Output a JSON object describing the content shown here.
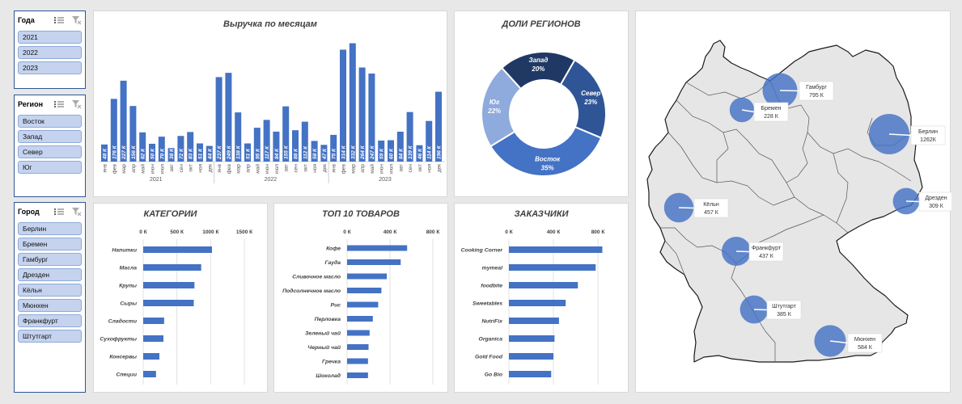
{
  "slicers": {
    "years": {
      "title": "Года",
      "items": [
        "2021",
        "2022",
        "2023"
      ]
    },
    "region": {
      "title": "Регион",
      "items": [
        "Восток",
        "Запад",
        "Север",
        "Юг"
      ]
    },
    "city": {
      "title": "Город",
      "items": [
        "Берлин",
        "Бремен",
        "Гамбург",
        "Дрезден",
        "Кёльн",
        "Мюнхен",
        "Франкфурт",
        "Штутгарт"
      ]
    }
  },
  "colors": {
    "bar": "#4472c4",
    "donut": [
      "#2f5597",
      "#4472c4",
      "#8faadc",
      "#203864"
    ],
    "map_fill": "#e6e6e6",
    "map_stroke": "#1a1a1a"
  },
  "chart_data": [
    {
      "type": "bar",
      "title": "Выручка по месяцам",
      "years": [
        "2021",
        "2022",
        "2023"
      ],
      "categories": [
        "янв",
        "фев",
        "мар",
        "апр",
        "май",
        "июн",
        "июл",
        "авг",
        "сен",
        "окт",
        "ноя",
        "дек"
      ],
      "values": [
        48,
        176,
        227,
        156,
        82,
        50,
        70,
        38,
        72,
        83,
        51,
        44,
        237,
        249,
        138,
        51,
        95,
        117,
        84,
        155,
        88,
        112,
        58,
        47,
        75,
        314,
        332,
        264,
        247,
        59,
        60,
        84,
        139,
        46,
        114,
        196
      ],
      "labels": [
        "48 К",
        "176 К",
        "227 К",
        "156 К",
        "82 К",
        "50 К",
        "70 К",
        "38 К",
        "72 К",
        "83 К",
        "51 К",
        "44 К",
        "237 К",
        "249 К",
        "138 К",
        "51 К",
        "95 К",
        "117 К",
        "84 К",
        "155 К",
        "88 К",
        "112 К",
        "58 К",
        "47 К",
        "75 К",
        "314 К",
        "332 К",
        "264 К",
        "247 К",
        "59 К",
        "60 К",
        "84 К",
        "139 К",
        "46 К",
        "114 К",
        "196 К"
      ]
    },
    {
      "type": "pie",
      "title": "ДОЛИ РЕГИОНОВ",
      "categories": [
        "Север",
        "Восток",
        "Юг",
        "Запад"
      ],
      "values": [
        23,
        35,
        22,
        20
      ],
      "labels": [
        "23%",
        "35%",
        "22%",
        "20%"
      ]
    },
    {
      "type": "bar",
      "title": "КАТЕГОРИИ",
      "categories": [
        "Напитки",
        "Масла",
        "Крупы",
        "Сыры",
        "Сладости",
        "Сухофрукты",
        "Консервы",
        "Специи"
      ],
      "values": [
        1020,
        860,
        760,
        750,
        310,
        300,
        240,
        190
      ],
      "xticks": [
        0,
        500,
        1000,
        1500
      ],
      "xtick_labels": [
        "0 К",
        "500 К",
        "1000 К",
        "1500 К"
      ],
      "xlim": [
        0,
        1500
      ]
    },
    {
      "type": "bar",
      "title": "ТОП 10 ТОВАРОВ",
      "categories": [
        "Кофе",
        "Гауда",
        "Сливочное масло",
        "Подсолнечное масло",
        "Рис",
        "Перловка",
        "Зеленый чай",
        "Черный чай",
        "Гречка",
        "Шоколад"
      ],
      "values": [
        560,
        500,
        370,
        320,
        290,
        240,
        210,
        200,
        195,
        195
      ],
      "xticks": [
        0,
        400,
        800
      ],
      "xtick_labels": [
        "0 К",
        "400 К",
        "800 К"
      ],
      "xlim": [
        0,
        800
      ]
    },
    {
      "type": "bar",
      "title": "ЗАКАЗЧИКИ",
      "categories": [
        "Cooking Corner",
        "mymeal",
        "foodbite",
        "Sweetables",
        "NutriFix",
        "Organica",
        "Gold Food",
        "Go Bio"
      ],
      "values": [
        840,
        780,
        620,
        510,
        450,
        410,
        400,
        380
      ],
      "xticks": [
        0,
        400,
        800
      ],
      "xtick_labels": [
        "0 К",
        "400 К",
        "800 К"
      ],
      "xlim": [
        0,
        800
      ]
    }
  ],
  "map": {
    "cities": [
      {
        "name": "Гамбург",
        "value": "795 К",
        "amount": 795
      },
      {
        "name": "Бремен",
        "value": "228 К",
        "amount": 228
      },
      {
        "name": "Берлин",
        "value": "1262К",
        "amount": 1262
      },
      {
        "name": "Кёльн",
        "value": "457 К",
        "amount": 457
      },
      {
        "name": "Дрезден",
        "value": "309 К",
        "amount": 309
      },
      {
        "name": "Франкфурт",
        "value": "437 К",
        "amount": 437
      },
      {
        "name": "Штутгарт",
        "value": "385 К",
        "amount": 385
      },
      {
        "name": "Мюнхен",
        "value": "584 К",
        "amount": 584
      }
    ]
  }
}
